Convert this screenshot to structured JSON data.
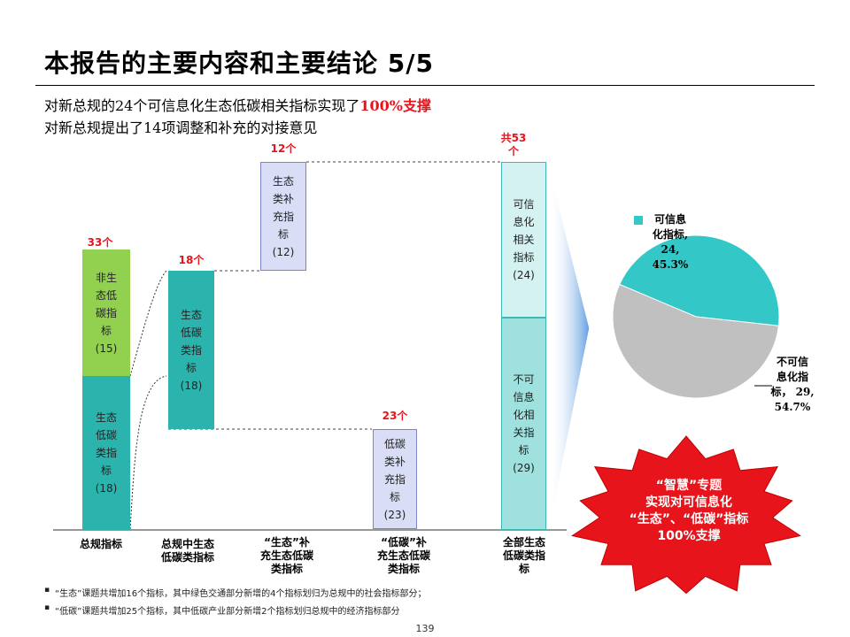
{
  "header": {
    "title": "本报告的主要内容和主要结论 5/5"
  },
  "subtitle": {
    "line1_prefix": "对新总规的24个可信息化生态低碳相关指标实现了",
    "line1_highlight": "100%支撑",
    "line2": "对新总规提出了14项调整和补充的对接意见"
  },
  "waterfall": {
    "counts": {
      "total": "33个",
      "eco_low": "18个",
      "eco_add": "12个",
      "low_add": "23个",
      "all": "共53\n个"
    },
    "bars": {
      "non_eco": "非生\n态低\n碳指\n标\n(15)",
      "eco": "生态\n低碳\n类指\n标\n(18)",
      "eco_low": "生态\n低碳\n类指\n标\n(18)",
      "eco_add": "生态\n类补\n充指\n标\n(12)",
      "low_add": "低碳\n类补\n充指\n标\n(23)",
      "can_info": "可信\n息化\n相关\n指标\n(24)",
      "cannot_info": "不可\n信息\n化相\n关指\n标\n(29)"
    },
    "categories": [
      "总规指标",
      "总规中生态\n低碳类指标",
      "“生态”补\n充生态低碳\n类指标",
      "“低碳”补\n充生态低碳\n类指标",
      "全部生态\n低碳类指\n标"
    ]
  },
  "chart_data": {
    "type": "pie",
    "title": "",
    "categories": [
      "可信息化指标",
      "不可信息化指标"
    ],
    "values": [
      24,
      29
    ],
    "percents": [
      45.3,
      54.7
    ],
    "colors": [
      "#33c7c7",
      "#c0c0c0"
    ]
  },
  "pie_labels": {
    "can": "可信息\n化指标,\n24,\n45.3%",
    "cannot": "不可信\n息化指\n标， 29,\n54.7%"
  },
  "burst": {
    "text": "“智慧”专题\n实现对可信息化\n“生态”、“低碳”指标\n100%支撑",
    "color": "#e8141c"
  },
  "notes": [
    "“生态”课题共增加16个指标，其中绿色交通部分新增的4个指标划归为总规中的社会指标部分；",
    "“低碳”课题共增加25个指标，其中低碳产业部分新增2个指标划归总规中的经济指标部分"
  ],
  "footer": {
    "page_number": "139"
  }
}
